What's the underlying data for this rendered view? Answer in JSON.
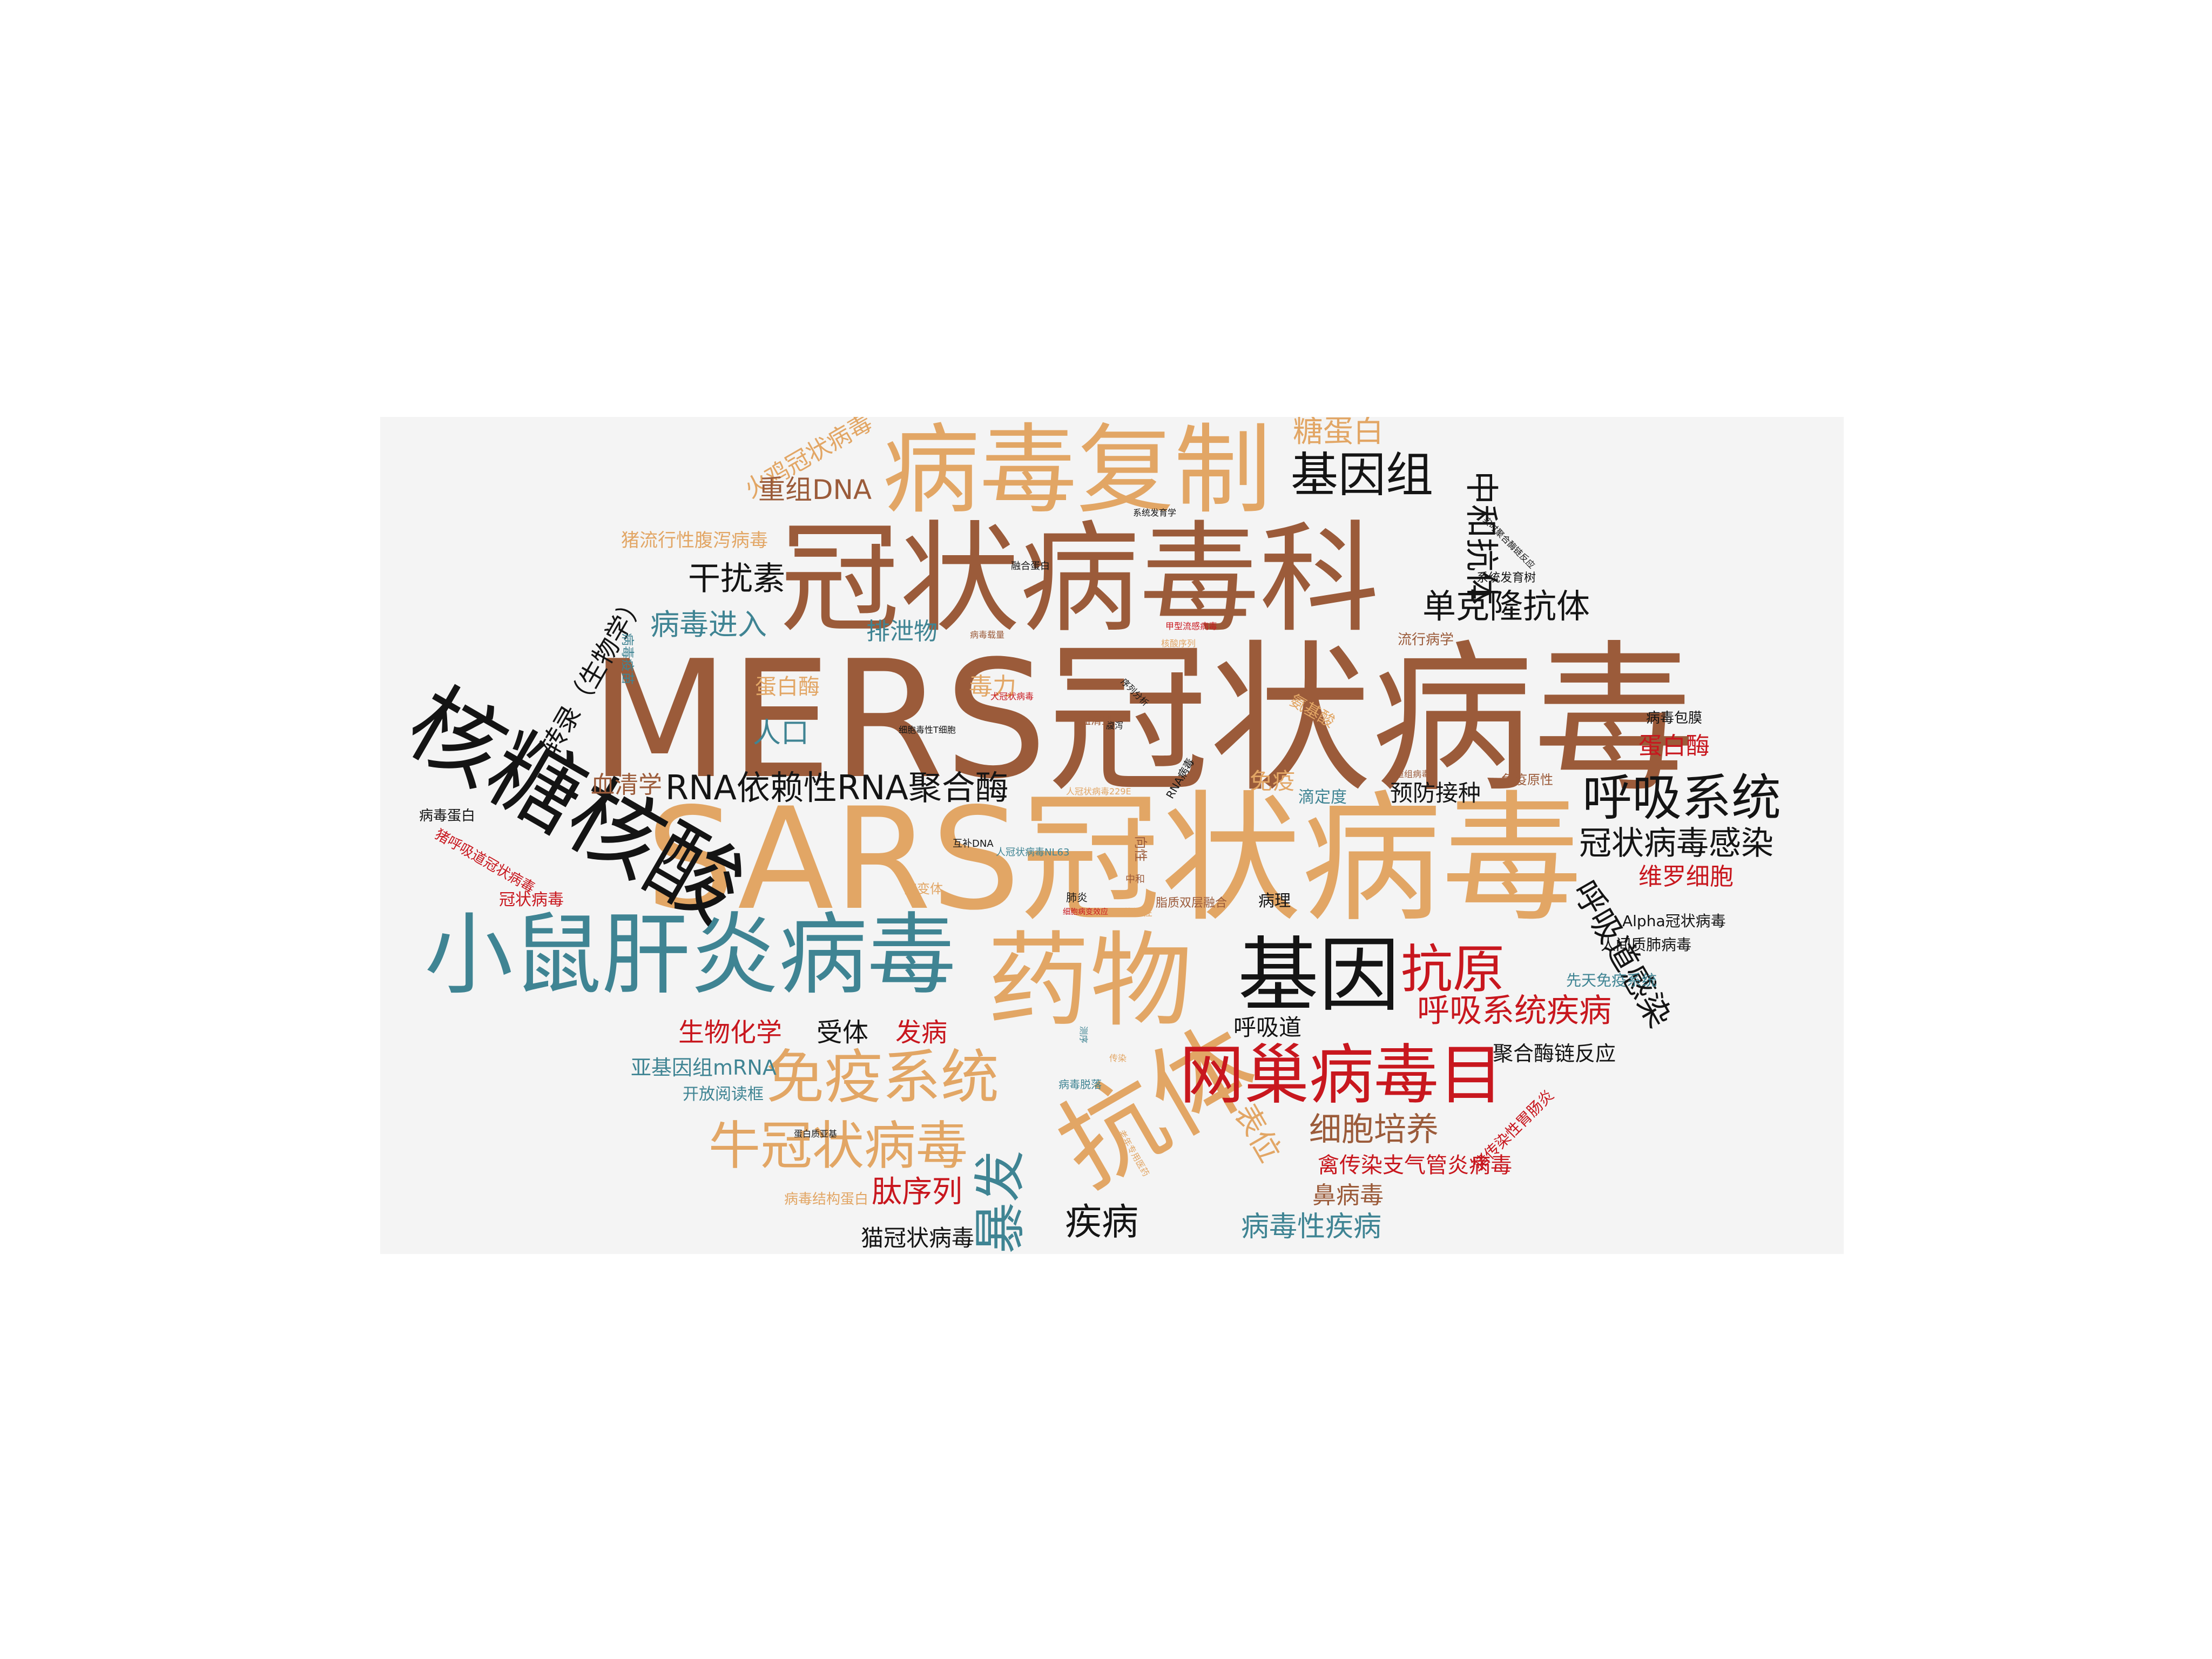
{
  "words": {
    "mers": "MERS冠状病毒",
    "sars": "SARS冠状病毒",
    "coronaviridae": "冠状病毒科",
    "replication": "病毒复制",
    "rna": "核糖核酸",
    "mhv": "小鼠肝炎病毒",
    "drug": "药物",
    "antibody": "抗体",
    "gene": "基因",
    "nidovirales": "网巢病毒目",
    "immune_system": "免疫系统",
    "bovine_cov": "牛冠状病毒",
    "outbreak": "暴发",
    "antigen": "抗原",
    "respiratory_system": "呼吸系统",
    "genome": "基因组",
    "cov_infection": "冠状病毒感染",
    "rdrp": "RNA依赖性RNA聚合酶",
    "resp_disease": "呼吸系统疾病",
    "resp_tract_infection": "呼吸道感染",
    "monoclonal": "单克隆抗体",
    "neutralizing": "中和抗体",
    "glycoprotein": "糖蛋白",
    "turkey_cov": "火鸡冠状病毒",
    "recombinant_dna": "重组DNA",
    "pedv": "猪流行性腹泻病毒",
    "interferon": "干扰素",
    "viral_entry": "病毒进入",
    "transcription": "转录（生物学）",
    "excreta": "排泄物",
    "virulence": "毒力",
    "protease": "蛋白酶",
    "population": "人口",
    "serology": "血清学",
    "immunity": "免疫",
    "vaccination": "预防接种",
    "protease2": "蛋白酶",
    "vero": "维罗细胞",
    "biochemistry": "生物化学",
    "receptor": "受体",
    "pathogenesis": "发病",
    "airway": "呼吸道",
    "pcr": "聚合酶链反应",
    "sgmrna": "亚基因组mRNA",
    "orf": "开放阅读框",
    "cell_culture": "细胞培养",
    "epitope": "表位",
    "ibv": "禽传染支气管炎病毒",
    "peptide": "肽序列",
    "rhinovirus": "鼻病毒",
    "disease": "疾病",
    "viral_disease": "病毒性疾病",
    "fcov": "猫冠状病毒",
    "structural_protein": "病毒结构蛋白",
    "envelope": "病毒包膜",
    "hmpv": "人间质肺病毒",
    "alpha_cov": "Alpha冠状病毒",
    "innate": "先天免疫系统",
    "pathology": "病理",
    "tge": "猪传染性胃肠炎",
    "viral_protein": "病毒蛋白",
    "prcv": "猪呼吸道冠状病毒",
    "coronavirus": "冠状病毒",
    "phylogenetics": "系统发育学",
    "phylogenetic_tree": "系统发育树",
    "rtpcr": "实时聚合酶链反应",
    "fusion_protein": "融合蛋白",
    "epidemiology": "流行病学",
    "immunogenicity": "免疫原性",
    "titer": "滴定度",
    "amino_acid": "氨基酸",
    "viral_vaccine": "病毒疫苗",
    "canine_cov": "犬冠状病毒",
    "ctl": "细胞毒性T细胞",
    "hcov229e": "人冠状病毒229E",
    "nl63": "人冠状病毒NL63",
    "cdna": "互补DNA",
    "mutant": "突变体",
    "pneumonia": "肺炎",
    "tropism": "向性",
    "neutralization": "中和",
    "infectivity": "传染性",
    "membrane_fusion": "脂质双层融合",
    "spike": "蛋白质亚基",
    "viral_load": "病毒载量",
    "influenza_a": "甲型流感病毒",
    "nucleotide": "核酸序列",
    "seq_analysis": "序列分析",
    "diarrhea": "腹泻",
    "rna_virus": "RNA病毒",
    "shedding": "病毒脱落",
    "reoviruses": "重组病毒",
    "sequencing": "测序",
    "cpe": "细胞病变效应",
    "transmission": "传染",
    "serum": "血清型",
    "mod": "老年专用医药"
  }
}
